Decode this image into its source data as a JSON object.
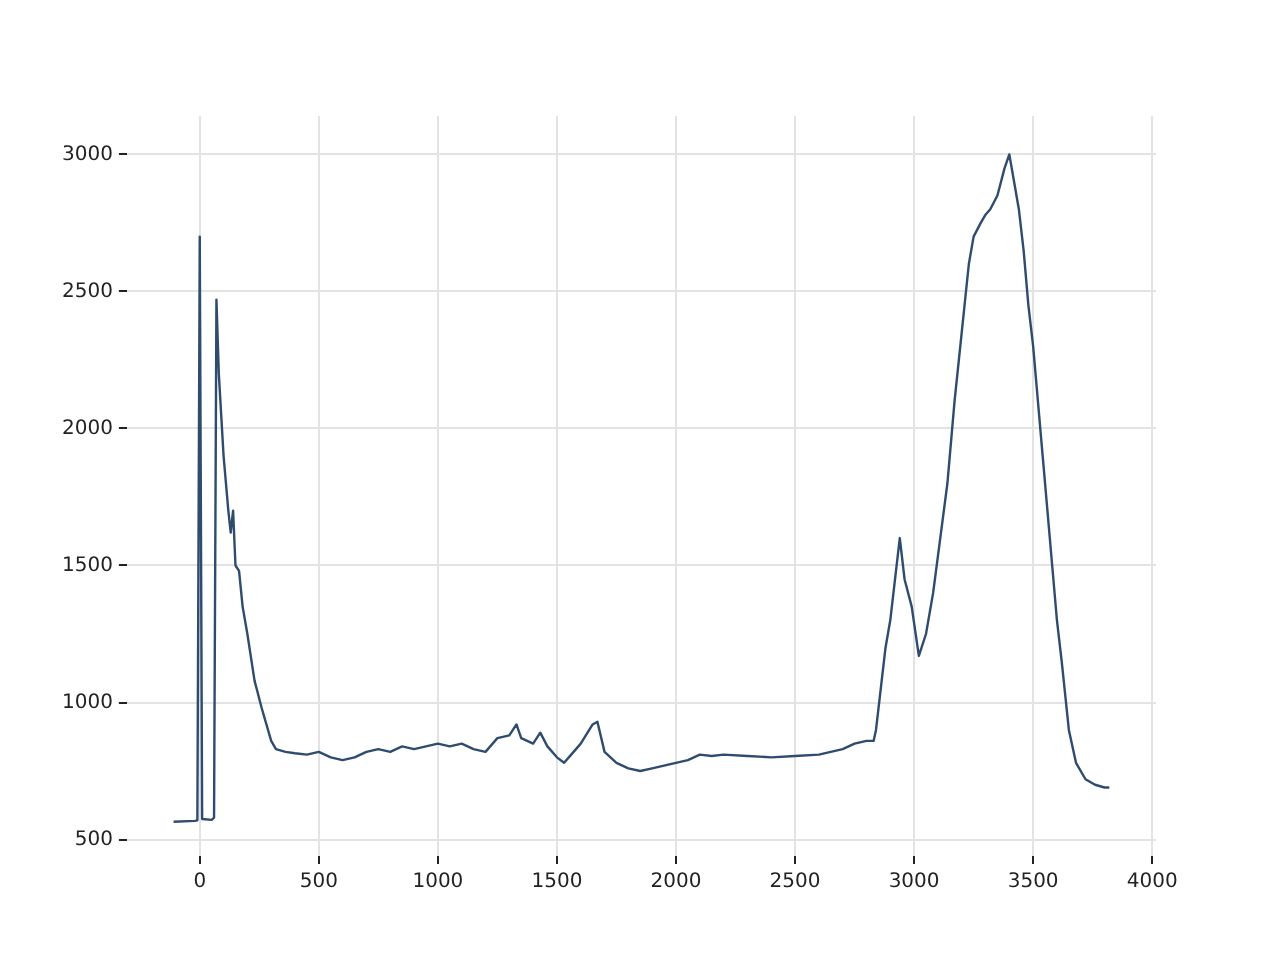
{
  "chart_data": {
    "type": "line",
    "xlim": [
      -306,
      4016
    ],
    "ylim": [
      440,
      3140
    ],
    "xticks": [
      0,
      500,
      1000,
      1500,
      2000,
      2500,
      3000,
      3500,
      4000
    ],
    "yticks": [
      500,
      1000,
      1500,
      2000,
      2500,
      3000
    ],
    "grid": true,
    "legend": false,
    "marker": "none",
    "line_style": "solid",
    "series": [
      {
        "color": "#2f4b6e",
        "x": [
          -110,
          -20,
          -10,
          0,
          10,
          50,
          60,
          70,
          80,
          100,
          120,
          130,
          140,
          150,
          165,
          180,
          200,
          230,
          260,
          300,
          320,
          360,
          400,
          450,
          500,
          550,
          600,
          650,
          700,
          750,
          800,
          850,
          900,
          950,
          1000,
          1050,
          1100,
          1150,
          1200,
          1250,
          1300,
          1330,
          1350,
          1400,
          1430,
          1460,
          1500,
          1530,
          1560,
          1600,
          1650,
          1670,
          1700,
          1750,
          1800,
          1850,
          1900,
          1950,
          2000,
          2050,
          2100,
          2150,
          2200,
          2300,
          2400,
          2500,
          2600,
          2700,
          2750,
          2800,
          2830,
          2840,
          2860,
          2880,
          2900,
          2920,
          2940,
          2960,
          2990,
          3020,
          3050,
          3080,
          3110,
          3140,
          3170,
          3200,
          3230,
          3250,
          3280,
          3300,
          3320,
          3350,
          3380,
          3400,
          3420,
          3440,
          3460,
          3480,
          3500,
          3520,
          3540,
          3560,
          3580,
          3600,
          3620,
          3650,
          3680,
          3720,
          3760,
          3800,
          3820
        ],
        "values": [
          565,
          568,
          570,
          2700,
          575,
          572,
          580,
          2470,
          2200,
          1900,
          1700,
          1620,
          1700,
          1500,
          1480,
          1350,
          1250,
          1080,
          980,
          860,
          830,
          820,
          815,
          810,
          820,
          800,
          790,
          800,
          820,
          830,
          820,
          840,
          830,
          840,
          850,
          840,
          850,
          830,
          820,
          870,
          880,
          920,
          870,
          850,
          890,
          840,
          800,
          780,
          810,
          850,
          920,
          930,
          820,
          780,
          760,
          750,
          760,
          770,
          780,
          790,
          810,
          805,
          810,
          805,
          800,
          805,
          810,
          830,
          850,
          860,
          860,
          900,
          1050,
          1200,
          1300,
          1450,
          1600,
          1450,
          1350,
          1170,
          1250,
          1400,
          1600,
          1800,
          2100,
          2350,
          2600,
          2700,
          2750,
          2780,
          2800,
          2850,
          2950,
          3000,
          2900,
          2800,
          2650,
          2450,
          2300,
          2100,
          1900,
          1700,
          1500,
          1300,
          1150,
          900,
          780,
          720,
          700,
          690,
          690
        ]
      }
    ]
  }
}
